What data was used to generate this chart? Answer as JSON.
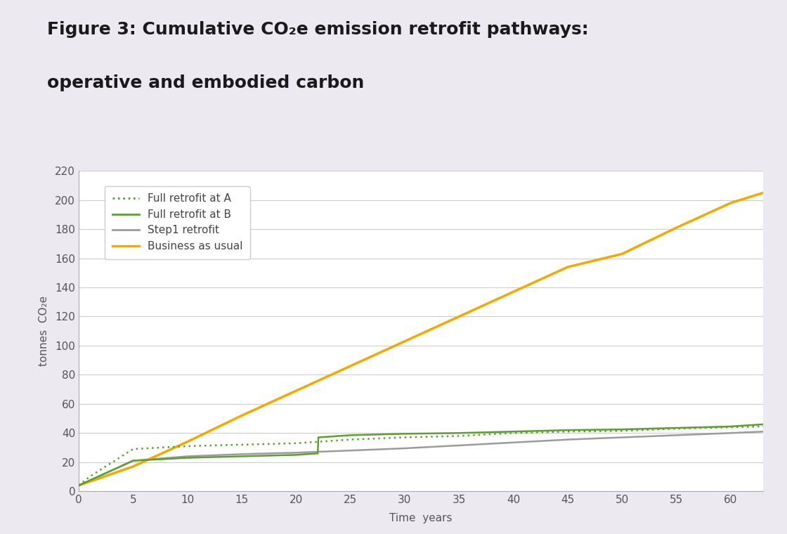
{
  "ylabel": "tonnes  CO₂e",
  "xlabel": "Time  years",
  "xlim": [
    0,
    63
  ],
  "ylim": [
    0,
    220
  ],
  "yticks": [
    0,
    20,
    40,
    60,
    80,
    100,
    120,
    140,
    160,
    180,
    200,
    220
  ],
  "xticks": [
    0,
    5,
    10,
    15,
    20,
    25,
    30,
    35,
    40,
    45,
    50,
    55,
    60
  ],
  "bau_color": "#F5A800",
  "full_retro_A_color": "#5C9E31",
  "full_retro_B_color": "#5C9E31",
  "step1_color": "#9B9B9B",
  "plot_bg": "#FFFFFF",
  "outer_bg": "#EDE9F0",
  "legend_labels": [
    "Full retrofit at A",
    "Full retrofit at B",
    "Step1 retrofit",
    "Business as usual"
  ],
  "bau": {
    "x": [
      0,
      5,
      10,
      15,
      20,
      25,
      30,
      35,
      40,
      45,
      50,
      55,
      60,
      63
    ],
    "y": [
      4,
      17,
      34,
      52,
      69,
      86,
      103,
      120,
      137,
      154,
      163,
      181,
      198,
      205
    ]
  },
  "full_retro_A": {
    "x": [
      0,
      1,
      5,
      10,
      15,
      20,
      22,
      25,
      30,
      35,
      40,
      45,
      50,
      55,
      60,
      63
    ],
    "y": [
      4,
      10,
      29,
      31,
      32,
      33,
      34,
      35.5,
      37,
      38,
      40,
      41,
      41.5,
      43,
      44,
      44.5
    ]
  },
  "full_retro_B": {
    "x": [
      0,
      5,
      10,
      15,
      20,
      22,
      22.05,
      25,
      30,
      35,
      40,
      45,
      50,
      55,
      60,
      63
    ],
    "y": [
      4,
      21,
      23,
      24,
      25,
      26,
      37,
      38.5,
      39.5,
      40,
      41,
      42,
      42.5,
      43.5,
      44.5,
      46
    ]
  },
  "step1": {
    "x": [
      0,
      5,
      10,
      15,
      20,
      25,
      30,
      35,
      40,
      45,
      50,
      55,
      60,
      63
    ],
    "y": [
      4,
      21,
      24,
      25.5,
      26.5,
      28,
      29.5,
      31.5,
      33.5,
      35.5,
      37,
      38.5,
      40,
      41
    ]
  },
  "title_fontsize": 18,
  "tick_fontsize": 11,
  "label_fontsize": 11,
  "legend_fontsize": 11
}
